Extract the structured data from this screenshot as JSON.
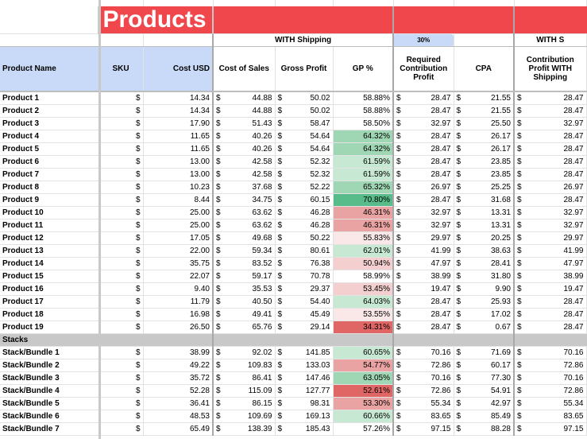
{
  "sheet": {
    "title": "Products",
    "with_shipping_label": "WITH Shipping",
    "pct_label": "30%",
    "with_s_label": "WITH S",
    "headers": {
      "product_name": "Product Name",
      "sku": "SKU",
      "cost_usd": "Cost USD",
      "cost_of_sales": "Cost of Sales",
      "gross_profit": "Gross Profit",
      "gp_pct": "GP %",
      "required_cp": "Required Contribution Profit",
      "cpa": "CPA",
      "cp_with_shipping": "Contribution Profit WITH Shipping"
    },
    "currency_symbol": "$",
    "section_label": "Stacks",
    "products": [
      {
        "name": "Product 1",
        "cost": "14.34",
        "cos": "44.88",
        "gp": "50.02",
        "gpp": "58.88%",
        "rcp": "28.47",
        "cpa": "21.55",
        "cpw": "28.47",
        "tone": ""
      },
      {
        "name": "Product 2",
        "cost": "14.34",
        "cos": "44.88",
        "gp": "50.02",
        "gpp": "58.88%",
        "rcp": "28.47",
        "cpa": "21.55",
        "cpw": "28.47",
        "tone": ""
      },
      {
        "name": "Product 3",
        "cost": "17.90",
        "cos": "51.43",
        "gp": "58.47",
        "gpp": "58.50%",
        "rcp": "32.97",
        "cpa": "25.50",
        "cpw": "32.97",
        "tone": ""
      },
      {
        "name": "Product 4",
        "cost": "11.65",
        "cos": "40.26",
        "gp": "54.64",
        "gpp": "64.32%",
        "rcp": "28.47",
        "cpa": "26.17",
        "cpw": "28.47",
        "tone": "g2"
      },
      {
        "name": "Product 5",
        "cost": "11.65",
        "cos": "40.26",
        "gp": "54.64",
        "gpp": "64.32%",
        "rcp": "28.47",
        "cpa": "26.17",
        "cpw": "28.47",
        "tone": "g2"
      },
      {
        "name": "Product 6",
        "cost": "13.00",
        "cos": "42.58",
        "gp": "52.32",
        "gpp": "61.59%",
        "rcp": "28.47",
        "cpa": "23.85",
        "cpw": "28.47",
        "tone": "g3"
      },
      {
        "name": "Product 7",
        "cost": "13.00",
        "cos": "42.58",
        "gp": "52.32",
        "gpp": "61.59%",
        "rcp": "28.47",
        "cpa": "23.85",
        "cpw": "28.47",
        "tone": "g3"
      },
      {
        "name": "Product 8",
        "cost": "10.23",
        "cos": "37.68",
        "gp": "52.22",
        "gpp": "65.32%",
        "rcp": "26.97",
        "cpa": "25.25",
        "cpw": "26.97",
        "tone": "g2"
      },
      {
        "name": "Product 9",
        "cost": "8.44",
        "cos": "34.75",
        "gp": "60.15",
        "gpp": "70.80%",
        "rcp": "28.47",
        "cpa": "31.68",
        "cpw": "28.47",
        "tone": "g1"
      },
      {
        "name": "Product 10",
        "cost": "25.00",
        "cos": "63.62",
        "gp": "46.28",
        "gpp": "46.31%",
        "rcp": "32.97",
        "cpa": "13.31",
        "cpw": "32.97",
        "tone": "r2"
      },
      {
        "name": "Product 11",
        "cost": "25.00",
        "cos": "63.62",
        "gp": "46.28",
        "gpp": "46.31%",
        "rcp": "32.97",
        "cpa": "13.31",
        "cpw": "32.97",
        "tone": "r2"
      },
      {
        "name": "Product 12",
        "cost": "17.05",
        "cos": "49.68",
        "gp": "50.22",
        "gpp": "55.83%",
        "rcp": "29.97",
        "cpa": "20.25",
        "cpw": "29.97",
        "tone": "r4"
      },
      {
        "name": "Product 13",
        "cost": "22.00",
        "cos": "59.34",
        "gp": "80.61",
        "gpp": "62.01%",
        "rcp": "41.99",
        "cpa": "38.63",
        "cpw": "41.99",
        "tone": "g3"
      },
      {
        "name": "Product 14",
        "cost": "35.75",
        "cos": "83.52",
        "gp": "76.38",
        "gpp": "50.94%",
        "rcp": "47.97",
        "cpa": "28.41",
        "cpw": "47.97",
        "tone": "r3"
      },
      {
        "name": "Product 15",
        "cost": "22.07",
        "cos": "59.17",
        "gp": "70.78",
        "gpp": "58.99%",
        "rcp": "38.99",
        "cpa": "31.80",
        "cpw": "38.99",
        "tone": ""
      },
      {
        "name": "Product 16",
        "cost": "9.40",
        "cos": "35.53",
        "gp": "29.37",
        "gpp": "53.45%",
        "rcp": "19.47",
        "cpa": "9.90",
        "cpw": "19.47",
        "tone": "r3"
      },
      {
        "name": "Product 17",
        "cost": "11.79",
        "cos": "40.50",
        "gp": "54.40",
        "gpp": "64.03%",
        "rcp": "28.47",
        "cpa": "25.93",
        "cpw": "28.47",
        "tone": "g3"
      },
      {
        "name": "Product 18",
        "cost": "16.98",
        "cos": "49.41",
        "gp": "45.49",
        "gpp": "53.55%",
        "rcp": "28.47",
        "cpa": "17.02",
        "cpw": "28.47",
        "tone": "r4"
      },
      {
        "name": "Product 19",
        "cost": "26.50",
        "cos": "65.76",
        "gp": "29.14",
        "gpp": "34.31%",
        "rcp": "28.47",
        "cpa": "0.67",
        "cpw": "28.47",
        "tone": "r1"
      }
    ],
    "stacks": [
      {
        "name": "Stack/Bundle 1",
        "cost": "38.99",
        "cos": "92.02",
        "gp": "141.85",
        "gpp": "60.65%",
        "rcp": "70.16",
        "cpa": "71.69",
        "cpw": "70.16",
        "tone": "g3"
      },
      {
        "name": "Stack/Bundle 2",
        "cost": "49.22",
        "cos": "109.83",
        "gp": "133.03",
        "gpp": "54.77%",
        "rcp": "72.86",
        "cpa": "60.17",
        "cpw": "72.86",
        "tone": "r2"
      },
      {
        "name": "Stack/Bundle 3",
        "cost": "35.72",
        "cos": "86.41",
        "gp": "147.46",
        "gpp": "63.05%",
        "rcp": "70.16",
        "cpa": "77.30",
        "cpw": "70.16",
        "tone": "g2"
      },
      {
        "name": "Stack/Bundle 4",
        "cost": "52.28",
        "cos": "115.09",
        "gp": "127.77",
        "gpp": "52.61%",
        "rcp": "72.86",
        "cpa": "54.91",
        "cpw": "72.86",
        "tone": "r1"
      },
      {
        "name": "Stack/Bundle 5",
        "cost": "36.41",
        "cos": "86.15",
        "gp": "98.31",
        "gpp": "53.30%",
        "rcp": "55.34",
        "cpa": "42.97",
        "cpw": "55.34",
        "tone": "r2"
      },
      {
        "name": "Stack/Bundle 6",
        "cost": "48.53",
        "cos": "109.69",
        "gp": "169.13",
        "gpp": "60.66%",
        "rcp": "83.65",
        "cpa": "85.49",
        "cpw": "83.65",
        "tone": "g3"
      },
      {
        "name": "Stack/Bundle 7",
        "cost": "65.49",
        "cos": "138.39",
        "gp": "185.43",
        "gpp": "57.26%",
        "rcp": "97.15",
        "cpa": "88.28",
        "cpw": "97.15",
        "tone": ""
      }
    ]
  }
}
